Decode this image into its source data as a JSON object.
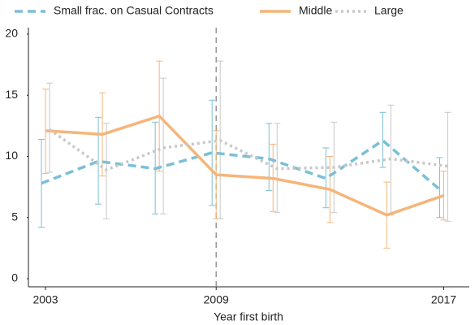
{
  "chart_data": {
    "type": "line",
    "x_label": "Year first birth",
    "x": [
      2003,
      2005,
      2007,
      2009,
      2011,
      2013,
      2015,
      2017
    ],
    "series": [
      {
        "name": "Small frac. on Casual Contracts",
        "color": "#7bbfd6",
        "dash": "dashed",
        "values": [
          7.8,
          9.6,
          9.0,
          10.3,
          9.8,
          8.2,
          11.3,
          7.3
        ],
        "lower": [
          4.2,
          6.1,
          5.3,
          6.0,
          7.2,
          5.8,
          9.1,
          5.0
        ],
        "upper": [
          11.4,
          13.2,
          12.8,
          14.6,
          12.7,
          10.7,
          13.6,
          9.9
        ]
      },
      {
        "name": "Middle",
        "color": "#f5b57a",
        "dash": "solid",
        "values": [
          12.1,
          11.8,
          13.3,
          8.5,
          8.2,
          7.3,
          5.2,
          6.8
        ],
        "lower": [
          8.6,
          8.4,
          8.8,
          4.9,
          5.5,
          4.6,
          2.5,
          4.8
        ],
        "upper": [
          15.5,
          15.2,
          17.8,
          12.1,
          11.0,
          10.0,
          7.9,
          8.8
        ]
      },
      {
        "name": "Large",
        "color": "#c8c8c8",
        "dash": "dotted",
        "values": [
          12.2,
          8.9,
          10.7,
          11.3,
          9.0,
          9.1,
          9.8,
          9.2
        ],
        "lower": [
          8.7,
          4.9,
          5.3,
          4.9,
          5.4,
          5.4,
          5.2,
          4.7
        ],
        "upper": [
          16.0,
          12.7,
          16.4,
          17.8,
          12.7,
          12.8,
          14.2,
          13.6
        ]
      }
    ],
    "vline": 2009,
    "xlim": [
      2002.4,
      2017.9
    ],
    "xticks": [
      2003,
      2009,
      2017
    ],
    "ylim": [
      0,
      20
    ],
    "yticks": [
      0,
      5,
      10,
      15,
      20
    ],
    "grid": false,
    "legend": "top"
  }
}
